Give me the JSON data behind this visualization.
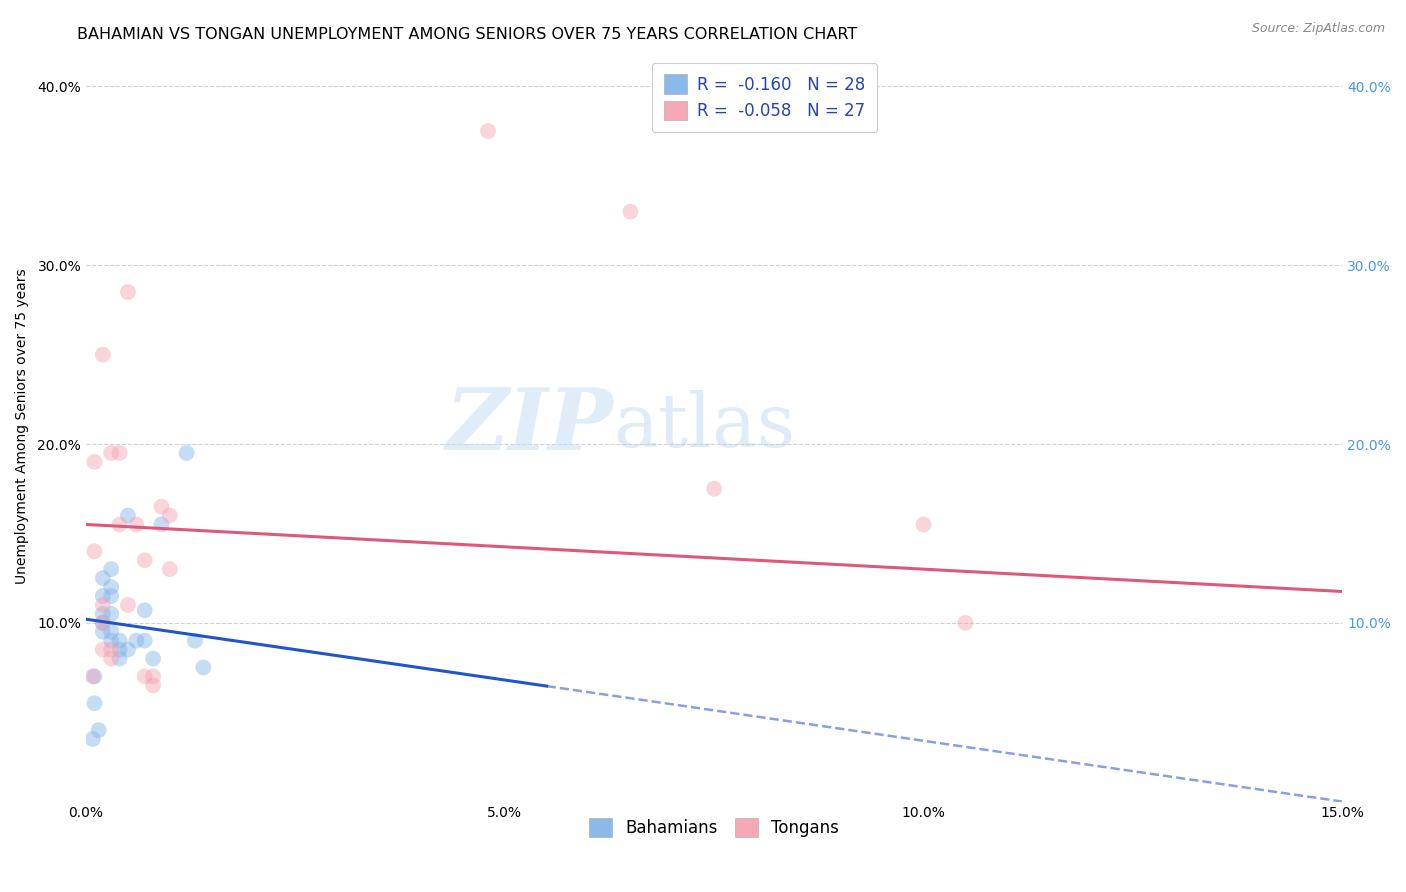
{
  "title": "BAHAMIAN VS TONGAN UNEMPLOYMENT AMONG SENIORS OVER 75 YEARS CORRELATION CHART",
  "source": "Source: ZipAtlas.com",
  "ylabel": "Unemployment Among Seniors over 75 years",
  "xlabel": "",
  "xlim": [
    0.0,
    0.15
  ],
  "ylim": [
    0.0,
    0.42
  ],
  "xticks": [
    0.0,
    0.05,
    0.1,
    0.15
  ],
  "yticks_left": [
    0.1,
    0.2,
    0.3,
    0.4
  ],
  "yticks_right": [
    0.1,
    0.2,
    0.3,
    0.4
  ],
  "bahamian_color": "#7fb3e8",
  "tongan_color": "#f4a0b0",
  "bahamian_line_color": "#2255cc",
  "tongan_line_color": "#e05878",
  "legend_R_bahamian": "-0.160",
  "legend_N_bahamian": "28",
  "legend_R_tongan": "-0.058",
  "legend_N_tongan": "27",
  "bahamian_x": [
    0.0008,
    0.001,
    0.001,
    0.0015,
    0.002,
    0.002,
    0.002,
    0.002,
    0.002,
    0.003,
    0.003,
    0.003,
    0.003,
    0.003,
    0.003,
    0.004,
    0.004,
    0.004,
    0.005,
    0.005,
    0.006,
    0.007,
    0.007,
    0.008,
    0.009,
    0.012,
    0.013,
    0.014
  ],
  "bahamian_y": [
    0.035,
    0.055,
    0.07,
    0.04,
    0.095,
    0.1,
    0.105,
    0.115,
    0.125,
    0.09,
    0.095,
    0.105,
    0.115,
    0.12,
    0.13,
    0.08,
    0.085,
    0.09,
    0.16,
    0.085,
    0.09,
    0.09,
    0.107,
    0.08,
    0.155,
    0.195,
    0.09,
    0.075
  ],
  "tongan_x": [
    0.0008,
    0.001,
    0.001,
    0.002,
    0.002,
    0.002,
    0.002,
    0.003,
    0.003,
    0.003,
    0.004,
    0.004,
    0.005,
    0.005,
    0.006,
    0.007,
    0.007,
    0.008,
    0.008,
    0.009,
    0.01,
    0.01,
    0.048,
    0.065,
    0.075,
    0.1,
    0.105
  ],
  "tongan_y": [
    0.07,
    0.14,
    0.19,
    0.085,
    0.1,
    0.11,
    0.25,
    0.08,
    0.085,
    0.195,
    0.155,
    0.195,
    0.11,
    0.285,
    0.155,
    0.135,
    0.07,
    0.065,
    0.07,
    0.165,
    0.13,
    0.16,
    0.375,
    0.33,
    0.175,
    0.155,
    0.1
  ],
  "watermark_zip": "ZIP",
  "watermark_atlas": "atlas",
  "marker_size": 130,
  "marker_alpha": 0.45,
  "grid_color": "#cccccc",
  "grid_style": "--",
  "background_color": "#ffffff",
  "title_fontsize": 11.5,
  "axis_label_fontsize": 10,
  "tick_fontsize": 10,
  "legend_fontsize": 12,
  "bahamian_line_intercept": 0.102,
  "bahamian_line_slope": -0.68,
  "tongan_line_intercept": 0.155,
  "tongan_line_slope": -0.25
}
